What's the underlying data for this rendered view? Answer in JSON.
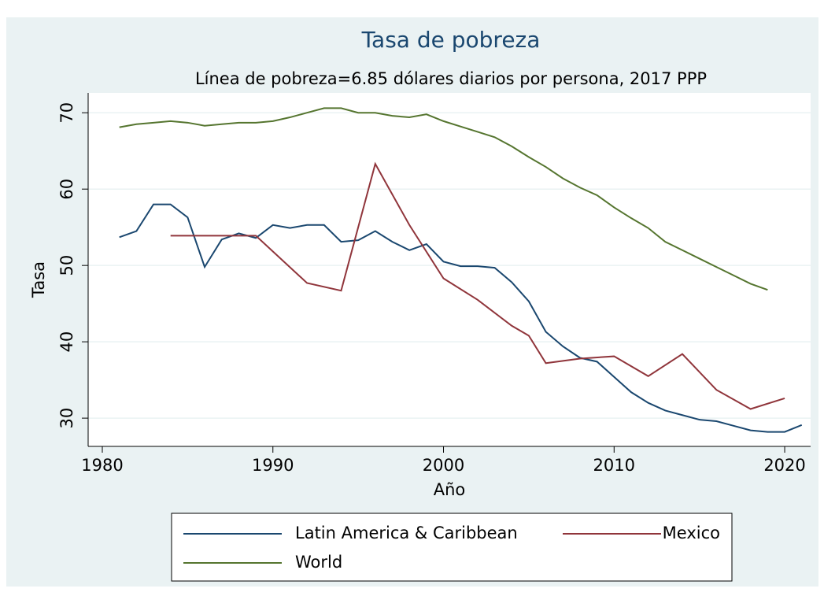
{
  "chart_data": {
    "type": "line",
    "title": "Tasa de pobreza",
    "subtitle": "Línea de pobreza=6.85 dólares diarios por persona, 2017 PPP",
    "x_label": "Año",
    "y_label": "Tasa",
    "xlim": [
      1979.17,
      2021.52
    ],
    "xticks": [
      1980,
      1990,
      2000,
      2010,
      2020
    ],
    "ylim": [
      26.3,
      72.6
    ],
    "yticks": [
      30,
      40,
      50,
      60,
      70
    ],
    "grid": true,
    "legend": "bottom",
    "series": [
      {
        "name": "Latin America & Caribbean",
        "color": "#1a476f",
        "x": [
          1981,
          1982,
          1983,
          1984,
          1985,
          1986,
          1987,
          1988,
          1989,
          1990,
          1991,
          1992,
          1993,
          1994,
          1995,
          1996,
          1997,
          1998,
          1999,
          2000,
          2001,
          2002,
          2003,
          2004,
          2005,
          2006,
          2007,
          2008,
          2009,
          2010,
          2011,
          2012,
          2013,
          2014,
          2015,
          2016,
          2017,
          2018,
          2019,
          2020,
          2021
        ],
        "values": [
          53.7,
          54.5,
          58.0,
          58.0,
          56.3,
          49.8,
          53.4,
          54.2,
          53.6,
          55.3,
          54.9,
          55.3,
          55.3,
          53.1,
          53.3,
          54.5,
          53.1,
          52.0,
          52.8,
          50.5,
          49.9,
          49.9,
          49.7,
          47.8,
          45.3,
          41.3,
          39.4,
          37.9,
          37.4,
          35.4,
          33.4,
          32.0,
          31.0,
          30.4,
          29.8,
          29.6,
          29.0,
          28.4,
          28.2,
          28.2,
          29.1
        ]
      },
      {
        "name": "Mexico",
        "color": "#90353b",
        "x": [
          1984,
          1989,
          1992,
          1994,
          1996,
          1998,
          2000,
          2002,
          2004,
          2005,
          2006,
          2008,
          2010,
          2012,
          2014,
          2016,
          2018,
          2020
        ],
        "values": [
          53.9,
          53.9,
          47.7,
          46.7,
          63.3,
          55.3,
          48.3,
          45.5,
          42.1,
          40.8,
          37.2,
          37.8,
          38.1,
          35.5,
          38.4,
          33.7,
          31.2,
          32.6
        ]
      },
      {
        "name": "World",
        "color": "#55752f",
        "x": [
          1981,
          1982,
          1983,
          1984,
          1985,
          1986,
          1987,
          1988,
          1989,
          1990,
          1991,
          1992,
          1993,
          1994,
          1995,
          1996,
          1997,
          1998,
          1999,
          2000,
          2001,
          2002,
          2003,
          2004,
          2005,
          2006,
          2007,
          2008,
          2009,
          2010,
          2011,
          2012,
          2013,
          2014,
          2015,
          2016,
          2017,
          2018,
          2019
        ],
        "values": [
          68.1,
          68.5,
          68.7,
          68.9,
          68.7,
          68.3,
          68.5,
          68.7,
          68.7,
          68.9,
          69.4,
          70.0,
          70.6,
          70.6,
          70.0,
          70.0,
          69.6,
          69.4,
          69.8,
          68.9,
          68.2,
          67.5,
          66.8,
          65.6,
          64.2,
          62.9,
          61.4,
          60.2,
          59.2,
          57.6,
          56.2,
          54.9,
          53.1,
          52.0,
          50.9,
          49.8,
          48.7,
          47.6,
          46.8
        ]
      }
    ]
  }
}
